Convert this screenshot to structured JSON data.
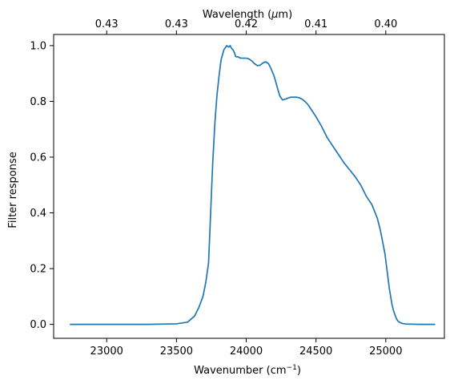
{
  "chart_data": {
    "type": "line",
    "title": "",
    "xlabel": "Wavenumber (cm",
    "xlabel_superscript": "−1",
    "xlabel_suffix": ")",
    "ylabel": "Filter response",
    "top_axis_label_prefix": "Wavelength (",
    "top_axis_label_symbol": "μ",
    "top_axis_label_suffix": "m)",
    "xlim": [
      22620,
      25420
    ],
    "ylim": [
      -0.05,
      1.04
    ],
    "xticks": [
      23000,
      23500,
      24000,
      24500,
      25000
    ],
    "xtick_labels": [
      "23000",
      "23500",
      "24000",
      "24500",
      "25000"
    ],
    "yticks": [
      0.0,
      0.2,
      0.4,
      0.6,
      0.8,
      1.0
    ],
    "ytick_labels": [
      "0.0",
      "0.2",
      "0.4",
      "0.6",
      "0.8",
      "1.0"
    ],
    "top_ticks_wavenumber": [
      23000,
      23500,
      24000,
      24500,
      25000
    ],
    "top_tick_labels": [
      "0.43",
      "0.43",
      "0.42",
      "0.41",
      "0.40"
    ],
    "grid": false,
    "series": [
      {
        "color": "#1f77b4",
        "x": [
          22740,
          23000,
          23300,
          23500,
          23580,
          23630,
          23660,
          23690,
          23710,
          23730,
          23745,
          23760,
          23775,
          23790,
          23805,
          23820,
          23840,
          23860,
          23875,
          23885,
          23895,
          23905,
          23915,
          23925,
          23940,
          23960,
          23980,
          24000,
          24020,
          24040,
          24060,
          24080,
          24100,
          24120,
          24140,
          24160,
          24180,
          24200,
          24220,
          24240,
          24260,
          24280,
          24300,
          24320,
          24340,
          24360,
          24380,
          24400,
          24420,
          24440,
          24460,
          24480,
          24500,
          24540,
          24580,
          24620,
          24660,
          24700,
          24740,
          24780,
          24820,
          24860,
          24900,
          24940,
          24960,
          24980,
          24995,
          25005,
          25015,
          25025,
          25035,
          25045,
          25055,
          25065,
          25075,
          25085,
          25100,
          25120,
          25140,
          25160,
          25200,
          25250,
          25300,
          25350
        ],
        "y": [
          0.0,
          0.0,
          0.0,
          0.002,
          0.008,
          0.03,
          0.06,
          0.1,
          0.15,
          0.22,
          0.4,
          0.58,
          0.72,
          0.82,
          0.89,
          0.95,
          0.985,
          1.0,
          0.995,
          1.0,
          0.99,
          0.985,
          0.975,
          0.96,
          0.96,
          0.955,
          0.955,
          0.955,
          0.952,
          0.945,
          0.935,
          0.928,
          0.93,
          0.938,
          0.942,
          0.935,
          0.915,
          0.89,
          0.855,
          0.82,
          0.805,
          0.808,
          0.812,
          0.815,
          0.815,
          0.815,
          0.813,
          0.808,
          0.8,
          0.79,
          0.775,
          0.76,
          0.745,
          0.71,
          0.67,
          0.64,
          0.61,
          0.58,
          0.555,
          0.53,
          0.5,
          0.46,
          0.43,
          0.38,
          0.34,
          0.29,
          0.25,
          0.21,
          0.17,
          0.13,
          0.1,
          0.07,
          0.05,
          0.035,
          0.022,
          0.013,
          0.007,
          0.003,
          0.0015,
          0.001,
          0.0005,
          0.0,
          0.0,
          0.0
        ]
      }
    ]
  }
}
